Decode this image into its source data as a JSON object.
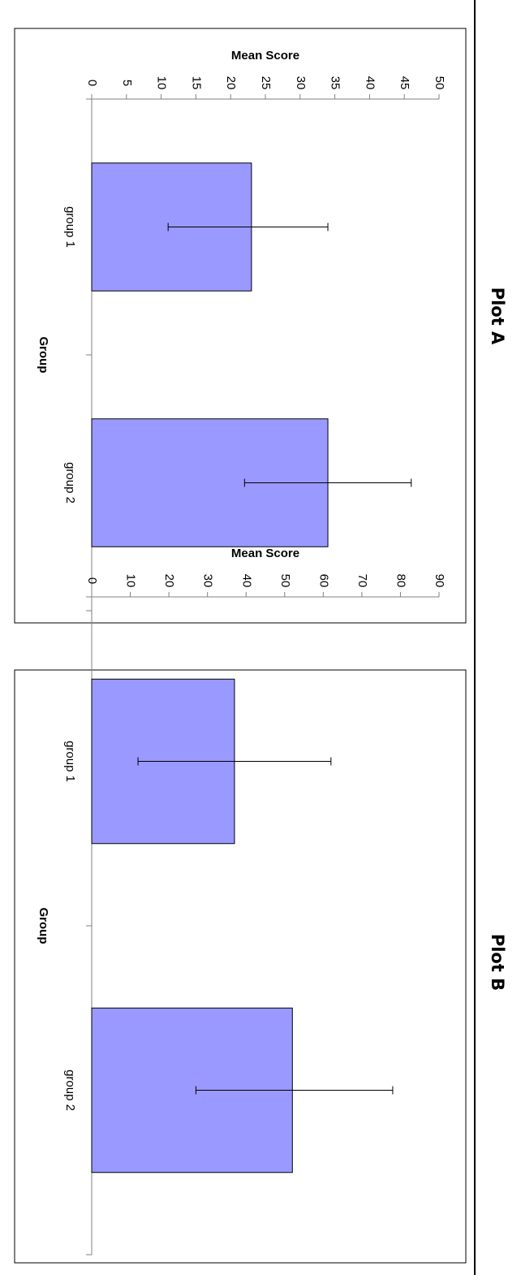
{
  "figure": {
    "labels": [
      "Plot A",
      "Plot B"
    ]
  },
  "chart_data": [
    {
      "type": "bar",
      "panel_label": "Plot A",
      "orientation": "figure rotated 90 degrees clockwise (vertical bars shown sideways)",
      "title": "",
      "xlabel": "Group",
      "ylabel": "Mean Score",
      "categories": [
        "group 1",
        "group 2"
      ],
      "values": [
        23,
        34
      ],
      "error_low": [
        11,
        22
      ],
      "error_high": [
        34,
        46
      ],
      "ylim": [
        0,
        50
      ],
      "yticks": [
        0,
        5,
        10,
        15,
        20,
        25,
        30,
        35,
        40,
        45,
        50
      ],
      "ytick_labels": [
        "0",
        "5",
        "10",
        "15",
        "20",
        "25",
        "30",
        "35",
        "40",
        "45",
        "50"
      ],
      "grid": false,
      "legend": "none",
      "bar_color": "#9999ff"
    },
    {
      "type": "bar",
      "panel_label": "Plot B",
      "orientation": "figure rotated 90 degrees clockwise (vertical bars shown sideways)",
      "title": "",
      "xlabel": "Group",
      "ylabel": "Mean Score",
      "categories": [
        "group 1",
        "group 2"
      ],
      "values": [
        37,
        52
      ],
      "error_low": [
        12,
        27
      ],
      "error_high": [
        62,
        78
      ],
      "ylim": [
        0,
        90
      ],
      "yticks": [
        0,
        10,
        20,
        30,
        40,
        50,
        60,
        70,
        80,
        90
      ],
      "ytick_labels": [
        "0",
        "10",
        "20",
        "30",
        "40",
        "50",
        "60",
        "70",
        "80",
        "90"
      ],
      "grid": false,
      "legend": "none",
      "bar_color": "#9999ff"
    }
  ]
}
